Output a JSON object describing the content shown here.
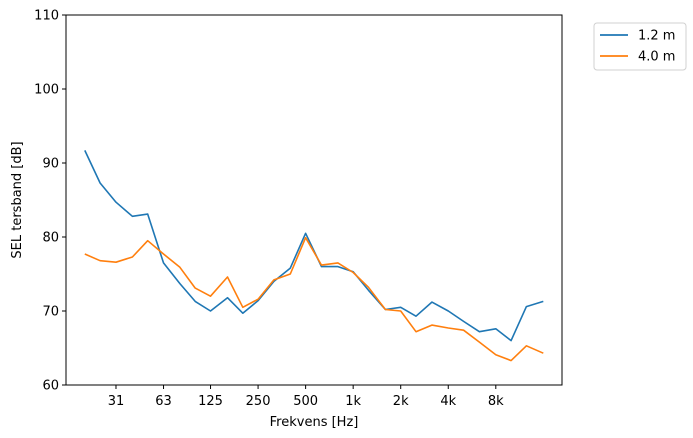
{
  "chart_data": {
    "type": "line",
    "xlabel": "Frekvens [Hz]",
    "ylabel": "SEL tersband [dB]",
    "ylim": [
      60,
      110
    ],
    "yticks": [
      60,
      70,
      80,
      90,
      100,
      110
    ],
    "x_scale": "log",
    "xtick_labels": [
      "31",
      "63",
      "125",
      "250",
      "500",
      "1k",
      "2k",
      "4k",
      "8k"
    ],
    "xtick_values": [
      31.5,
      63,
      125,
      250,
      500,
      1000,
      2000,
      4000,
      8000
    ],
    "x": [
      20,
      25,
      31.5,
      40,
      50,
      63,
      80,
      100,
      125,
      160,
      200,
      250,
      315,
      400,
      500,
      630,
      800,
      1000,
      1250,
      1600,
      2000,
      2500,
      3150,
      4000,
      5000,
      6300,
      8000,
      10000,
      12500,
      16000
    ],
    "series": [
      {
        "name": "1.2 m",
        "color": "#1f77b4",
        "values": [
          91.7,
          87.3,
          84.7,
          82.8,
          83.1,
          76.5,
          73.7,
          71.3,
          70.0,
          71.8,
          69.7,
          71.4,
          74.0,
          75.8,
          80.5,
          76.0,
          76.0,
          75.3,
          72.8,
          70.2,
          70.5,
          69.3,
          71.2,
          70.0,
          68.6,
          67.2,
          67.6,
          66.0,
          70.6,
          71.3
        ]
      },
      {
        "name": "4.0 m",
        "color": "#ff7f0e",
        "values": [
          77.7,
          76.8,
          76.6,
          77.3,
          79.5,
          77.7,
          75.9,
          73.1,
          72.0,
          74.6,
          70.5,
          71.6,
          74.2,
          75.0,
          79.9,
          76.2,
          76.5,
          75.2,
          73.2,
          70.2,
          70.0,
          67.2,
          68.1,
          67.7,
          67.4,
          65.8,
          64.1,
          63.3,
          65.3,
          64.3
        ]
      }
    ],
    "legend_position": "outside-top-right",
    "grid": false
  }
}
